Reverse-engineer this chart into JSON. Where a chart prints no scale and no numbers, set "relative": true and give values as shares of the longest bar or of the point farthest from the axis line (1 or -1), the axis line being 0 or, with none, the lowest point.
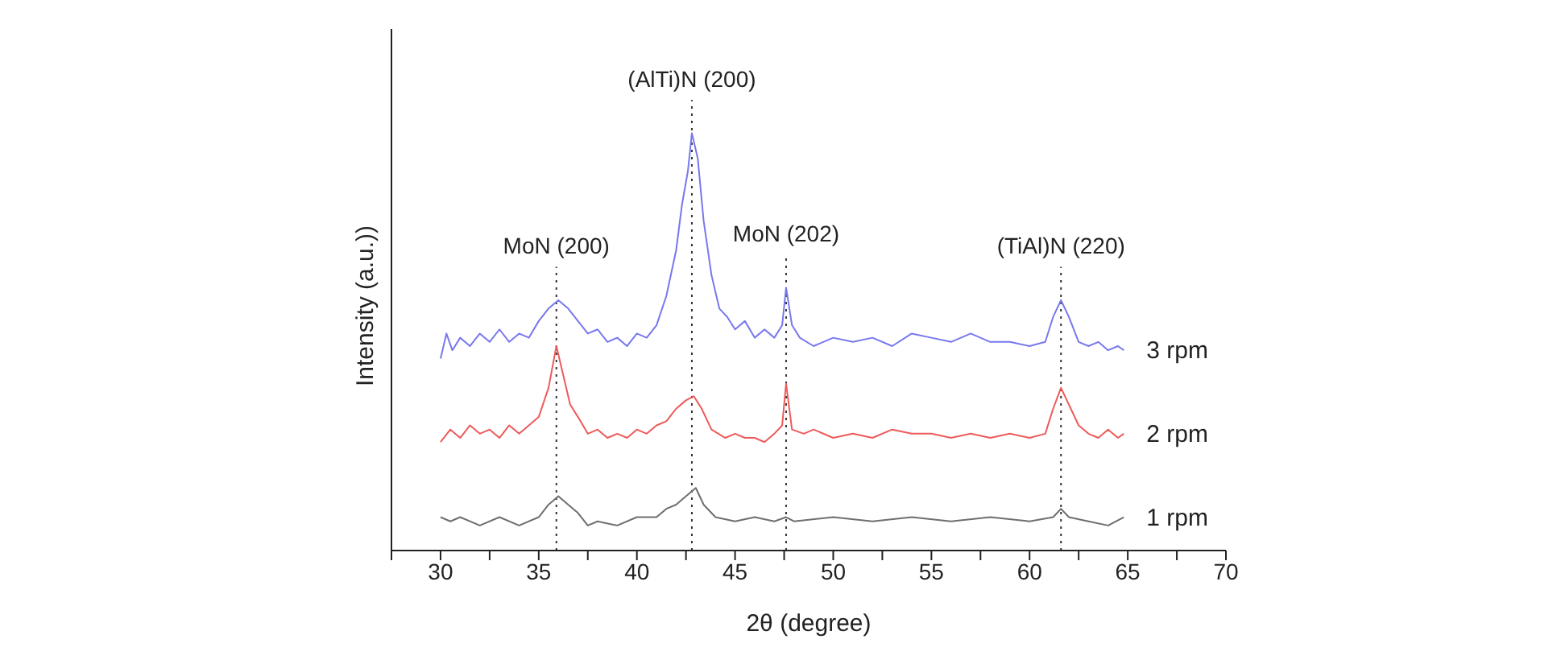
{
  "chart_data": {
    "type": "line",
    "relative": true,
    "xlabel": "2θ (degree)",
    "ylabel": "Intensity (a.u.))",
    "xlim": [
      27.5,
      70
    ],
    "xticks": [
      {
        "value": 27.5,
        "label": null
      },
      30,
      {
        "value": 32.5,
        "label": null
      },
      35,
      {
        "value": 37.5,
        "label": null
      },
      40,
      {
        "value": 42.5,
        "label": null
      },
      45,
      {
        "value": 47.5,
        "label": null
      },
      50,
      {
        "value": 52.5,
        "label": null
      },
      55,
      {
        "value": 57.5,
        "label": null
      },
      60,
      {
        "value": 62.5,
        "label": null
      },
      65,
      {
        "value": 67.5,
        "label": null
      },
      70
    ],
    "marker": "none",
    "line_style": "solid",
    "ref_lines": [
      {
        "axis": "x",
        "value": 35.9,
        "label": "MoN (200)",
        "line_style": "dotted",
        "color": "#333333"
      },
      {
        "axis": "x",
        "value": 42.8,
        "label": "(AlTi)N (200)",
        "line_style": "dotted",
        "color": "#333333"
      },
      {
        "axis": "x",
        "value": 47.6,
        "label": "MoN (202)",
        "line_style": "dotted",
        "color": "#333333"
      },
      {
        "axis": "x",
        "value": 61.6,
        "label": "(TiAl)N (220)",
        "line_style": "dotted",
        "color": "#333333"
      }
    ],
    "series": [
      {
        "name": "3 rpm",
        "color": "#7878ee",
        "x": [
          30,
          30.3,
          30.6,
          31,
          31.5,
          32,
          32.5,
          33,
          33.5,
          34,
          34.5,
          35,
          35.5,
          36,
          36.5,
          37,
          37.5,
          38,
          38.5,
          39,
          39.5,
          40,
          40.5,
          41,
          41.5,
          42,
          42.3,
          42.6,
          42.8,
          43.1,
          43.4,
          43.8,
          44.2,
          44.6,
          45,
          45.5,
          46,
          46.5,
          47,
          47.4,
          47.6,
          47.9,
          48.3,
          49,
          50,
          51,
          52,
          53,
          54,
          55,
          56,
          57,
          58,
          59,
          60,
          60.8,
          61.2,
          61.6,
          62,
          62.5,
          63,
          63.5,
          64,
          64.5,
          64.8
        ],
        "values": [
          0.46,
          0.52,
          0.48,
          0.51,
          0.49,
          0.52,
          0.5,
          0.53,
          0.5,
          0.52,
          0.51,
          0.55,
          0.58,
          0.6,
          0.58,
          0.55,
          0.52,
          0.53,
          0.5,
          0.51,
          0.49,
          0.52,
          0.51,
          0.54,
          0.61,
          0.72,
          0.83,
          0.91,
          1,
          0.94,
          0.79,
          0.66,
          0.58,
          0.56,
          0.53,
          0.55,
          0.51,
          0.53,
          0.51,
          0.54,
          0.63,
          0.54,
          0.51,
          0.49,
          0.51,
          0.5,
          0.51,
          0.49,
          0.52,
          0.51,
          0.5,
          0.52,
          0.5,
          0.5,
          0.49,
          0.5,
          0.56,
          0.6,
          0.56,
          0.5,
          0.49,
          0.5,
          0.48,
          0.49,
          0.48
        ]
      },
      {
        "name": "2 rpm",
        "color": "#ee5a5a",
        "x": [
          30,
          30.5,
          31,
          31.5,
          32,
          32.5,
          33,
          33.5,
          34,
          34.5,
          35,
          35.5,
          35.9,
          36.2,
          36.6,
          37,
          37.5,
          38,
          38.5,
          39,
          39.5,
          40,
          40.5,
          41,
          41.5,
          42,
          42.5,
          42.9,
          43.3,
          43.8,
          44.5,
          45,
          45.5,
          46,
          46.5,
          47,
          47.4,
          47.6,
          47.9,
          48.5,
          49,
          50,
          51,
          52,
          53,
          54,
          55,
          56,
          57,
          58,
          59,
          60,
          60.8,
          61.2,
          61.6,
          62,
          62.5,
          63,
          63.5,
          64,
          64.5,
          64.8
        ],
        "values": [
          0.26,
          0.29,
          0.27,
          0.3,
          0.28,
          0.29,
          0.27,
          0.3,
          0.28,
          0.3,
          0.32,
          0.39,
          0.49,
          0.43,
          0.35,
          0.32,
          0.28,
          0.29,
          0.27,
          0.28,
          0.27,
          0.29,
          0.28,
          0.3,
          0.31,
          0.34,
          0.36,
          0.37,
          0.34,
          0.29,
          0.27,
          0.28,
          0.27,
          0.27,
          0.26,
          0.28,
          0.3,
          0.4,
          0.29,
          0.28,
          0.29,
          0.27,
          0.28,
          0.27,
          0.29,
          0.28,
          0.28,
          0.27,
          0.28,
          0.27,
          0.28,
          0.27,
          0.28,
          0.34,
          0.39,
          0.35,
          0.3,
          0.28,
          0.27,
          0.29,
          0.27,
          0.28
        ]
      },
      {
        "name": "1 rpm",
        "color": "#6e6e6e",
        "x": [
          30,
          30.5,
          31,
          32,
          33,
          34,
          35,
          35.5,
          36,
          36.5,
          37,
          37.5,
          38,
          39,
          40,
          41,
          41.5,
          42,
          42.5,
          43,
          43.4,
          44,
          45,
          46,
          47,
          47.6,
          48,
          50,
          52,
          54,
          56,
          58,
          60,
          61.2,
          61.6,
          62,
          63,
          64,
          64.8
        ],
        "values": [
          0.08,
          0.07,
          0.08,
          0.06,
          0.08,
          0.06,
          0.08,
          0.11,
          0.13,
          0.11,
          0.09,
          0.06,
          0.07,
          0.06,
          0.08,
          0.08,
          0.1,
          0.11,
          0.13,
          0.15,
          0.11,
          0.08,
          0.07,
          0.08,
          0.07,
          0.08,
          0.07,
          0.08,
          0.07,
          0.08,
          0.07,
          0.08,
          0.07,
          0.08,
          0.1,
          0.08,
          0.07,
          0.06,
          0.08
        ]
      }
    ]
  }
}
